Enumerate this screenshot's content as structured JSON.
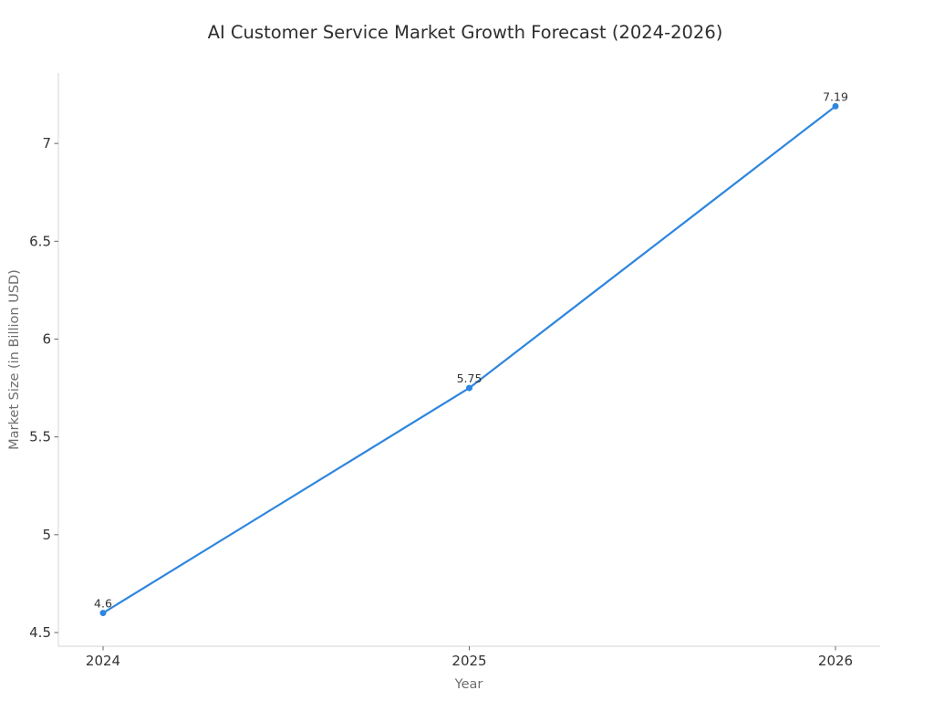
{
  "chart_data": {
    "type": "line",
    "title": "AI Customer Service Market Growth Forecast (2024-2026)",
    "xlabel": "Year",
    "ylabel": "Market Size (in Billion USD)",
    "categories": [
      "2024",
      "2025",
      "2026"
    ],
    "values": [
      4.6,
      5.75,
      7.19
    ],
    "point_labels": [
      "4.6",
      "5.75",
      "7.19"
    ],
    "yticks": [
      4.5,
      5.0,
      5.5,
      6.0,
      6.5,
      7.0
    ],
    "ytick_labels": [
      "4.5",
      "5",
      "5.5",
      "6",
      "6.5",
      "7"
    ],
    "ylim": [
      4.43,
      7.36
    ],
    "grid": false,
    "legend": "none",
    "colors": {
      "line": "#2e86de",
      "marker": "#2e86de",
      "spine": "#d4d4d4",
      "tick": "#666666",
      "tick_label": "#333333",
      "axis_title": "#6e6e6e",
      "title": "#2e2e2e",
      "annotation": "#333333",
      "background": "#ffffff"
    }
  }
}
